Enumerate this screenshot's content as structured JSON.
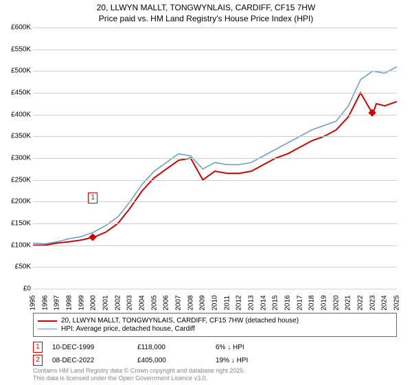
{
  "title_line1": "20, LLWYN MALLT, TONGWYNLAIS, CARDIFF, CF15 7HW",
  "title_line2": "Price paid vs. HM Land Registry's House Price Index (HPI)",
  "chart": {
    "type": "line",
    "background_color": "#ffffff",
    "grid_color": "#cccccc",
    "text_color": "#000000",
    "axis_fontsize": 10,
    "title_fontsize": 12,
    "x_start": 1995,
    "x_end": 2025,
    "x_tick_step": 1,
    "y_min": 0,
    "y_max": 600000,
    "y_tick_step": 50000,
    "y_tick_prefix": "£",
    "y_tick_suffix": "K",
    "series": [
      {
        "name": "price_paid",
        "color": "#d00000",
        "width": 2,
        "points": [
          [
            1995,
            100000
          ],
          [
            1996,
            100000
          ],
          [
            1997,
            105000
          ],
          [
            1998,
            108000
          ],
          [
            1999,
            112000
          ],
          [
            1999.94,
            118000
          ],
          [
            2000,
            118000
          ],
          [
            2001,
            130000
          ],
          [
            2002,
            150000
          ],
          [
            2003,
            185000
          ],
          [
            2004,
            225000
          ],
          [
            2005,
            255000
          ],
          [
            2006,
            275000
          ],
          [
            2007,
            295000
          ],
          [
            2008,
            300000
          ],
          [
            2009,
            250000
          ],
          [
            2010,
            270000
          ],
          [
            2011,
            265000
          ],
          [
            2012,
            265000
          ],
          [
            2013,
            270000
          ],
          [
            2014,
            285000
          ],
          [
            2015,
            300000
          ],
          [
            2016,
            310000
          ],
          [
            2017,
            325000
          ],
          [
            2018,
            340000
          ],
          [
            2019,
            350000
          ],
          [
            2020,
            365000
          ],
          [
            2021,
            395000
          ],
          [
            2022,
            450000
          ],
          [
            2022.94,
            405000
          ],
          [
            2023,
            400000
          ],
          [
            2023.3,
            425000
          ],
          [
            2024,
            420000
          ],
          [
            2025,
            430000
          ]
        ]
      },
      {
        "name": "hpi",
        "color": "#6699cc",
        "width": 1.5,
        "points": [
          [
            1995,
            105000
          ],
          [
            1996,
            103000
          ],
          [
            1997,
            108000
          ],
          [
            1998,
            115000
          ],
          [
            1999,
            120000
          ],
          [
            2000,
            130000
          ],
          [
            2001,
            145000
          ],
          [
            2002,
            165000
          ],
          [
            2003,
            200000
          ],
          [
            2004,
            240000
          ],
          [
            2005,
            270000
          ],
          [
            2006,
            290000
          ],
          [
            2007,
            310000
          ],
          [
            2008,
            305000
          ],
          [
            2009,
            275000
          ],
          [
            2010,
            290000
          ],
          [
            2011,
            285000
          ],
          [
            2012,
            285000
          ],
          [
            2013,
            290000
          ],
          [
            2014,
            305000
          ],
          [
            2015,
            320000
          ],
          [
            2016,
            335000
          ],
          [
            2017,
            350000
          ],
          [
            2018,
            365000
          ],
          [
            2019,
            375000
          ],
          [
            2020,
            385000
          ],
          [
            2021,
            420000
          ],
          [
            2022,
            480000
          ],
          [
            2023,
            500000
          ],
          [
            2024,
            495000
          ],
          [
            2025,
            510000
          ]
        ]
      }
    ],
    "markers": [
      {
        "id": "1",
        "x": 1999.94,
        "y": 118000,
        "color": "#d00000",
        "label_y_offset": -65
      },
      {
        "id": "2",
        "x": 2022.94,
        "y": 405000,
        "color": "#d00000",
        "label_y_offset": -320
      }
    ]
  },
  "legend": {
    "items": [
      {
        "color": "#d00000",
        "width": 2,
        "label": "20, LLWYN MALLT, TONGWYNLAIS, CARDIFF, CF15 7HW (detached house)"
      },
      {
        "color": "#6699cc",
        "width": 1.5,
        "label": "HPI: Average price, detached house, Cardiff"
      }
    ]
  },
  "data_rows": [
    {
      "marker": "1",
      "date": "10-DEC-1999",
      "price": "£118,000",
      "pct": "6% ↓ HPI"
    },
    {
      "marker": "2",
      "date": "08-DEC-2022",
      "price": "£405,000",
      "pct": "19% ↓ HPI"
    }
  ],
  "footer_line1": "Contains HM Land Registry data © Crown copyright and database right 2025.",
  "footer_line2": "This data is licensed under the Open Government Licence v3.0."
}
